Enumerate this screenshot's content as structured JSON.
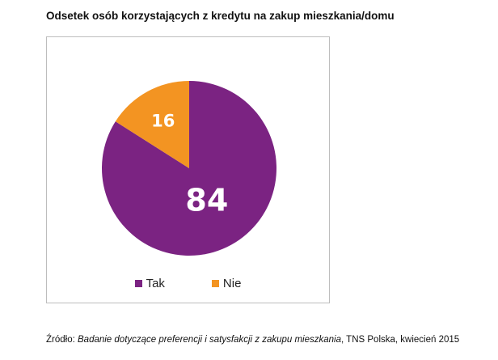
{
  "title": "Odsetek osób korzystających z kredytu na zakup mieszkania/domu",
  "source": {
    "prefix": "Źródło: ",
    "study": "Badanie dotyczące preferencji i satysfakcji z zakupu mieszkania",
    "suffix": ", TNS Polska, kwiecień 2015"
  },
  "chart_data": {
    "type": "pie",
    "title": "Odsetek osób korzystających z kredytu na zakup mieszkania/domu",
    "categories": [
      "Tak",
      "Nie"
    ],
    "values": [
      84,
      16
    ],
    "labels": [
      "84",
      "16"
    ],
    "colors": [
      "#7b2382",
      "#f39422"
    ],
    "start": "12 o'clock",
    "direction": "clockwise",
    "legend": "bottom"
  }
}
